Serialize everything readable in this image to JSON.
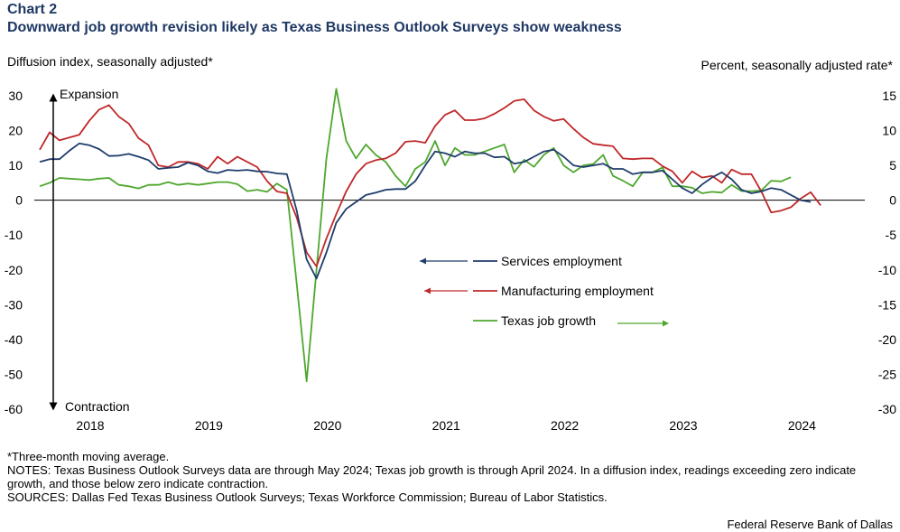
{
  "chart_label": "Chart 2",
  "chart_title": "Downward job growth revision likely as Texas Business Outlook Surveys show weakness",
  "left_axis_title": "Diffusion index, seasonally adjusted*",
  "right_axis_title": "Percent, seasonally adjusted rate*",
  "expansion_label": "Expansion",
  "contraction_label": "Contraction",
  "footer": {
    "note1": "*Three-month moving average.",
    "notes": "NOTES: Texas Business Outlook Surveys data are through May 2024; Texas job growth is through April 2024. In a diffusion index, readings exceeding zero indicate growth, and those below zero indicate contraction.",
    "sources": "SOURCES: Dallas Fed Texas Business Outlook Surveys; Texas Workforce Commission; Bureau of Labor Statistics."
  },
  "credit": "Federal Reserve Bank of Dallas",
  "colors": {
    "services": "#1f3d6b",
    "manufacturing": "#c0282a",
    "texas": "#4ea72e",
    "title": "#1f3864"
  },
  "chart_data": {
    "type": "line",
    "x_start": "2017-09",
    "x_labels": [
      "2018",
      "2019",
      "2020",
      "2021",
      "2022",
      "2023",
      "2024"
    ],
    "left_ylim": [
      -60,
      30
    ],
    "left_ticks": [
      "30",
      "20",
      "10",
      "0",
      "-10",
      "-20",
      "-30",
      "-40",
      "-50",
      "-60"
    ],
    "right_ylim": [
      -30,
      15
    ],
    "right_ticks": [
      "15",
      "10",
      "5",
      "0",
      "-5",
      "-10",
      "-15",
      "-20",
      "-25",
      "-30"
    ],
    "grid": false,
    "series": [
      {
        "name": "Services employment",
        "axis": "left",
        "values": [
          11.0,
          11.8,
          11.8,
          14.2,
          16.3,
          15.8,
          14.7,
          12.7,
          12.8,
          13.3,
          12.5,
          11.5,
          9.0,
          9.3,
          9.5,
          10.8,
          10.0,
          8.3,
          7.8,
          8.7,
          8.5,
          8.7,
          8.3,
          8.2,
          7.7,
          7.5,
          -3.0,
          -17.0,
          -22.5,
          -15.0,
          -6.5,
          -2.5,
          -0.5,
          1.5,
          2.2,
          3.0,
          3.2,
          3.2,
          5.5,
          10.0,
          14.0,
          13.5,
          12.5,
          14.0,
          13.5,
          13.5,
          12.3,
          12.5,
          10.5,
          11.0,
          12.5,
          14.0,
          14.5,
          12.5,
          10.0,
          9.5,
          10.0,
          10.5,
          9.0,
          9.0,
          7.5,
          8.0,
          8.0,
          8.5,
          6.0,
          3.5,
          2.0,
          4.5,
          6.5,
          8.0,
          6.0,
          3.0,
          2.0,
          2.5,
          3.5,
          3.0,
          1.5,
          0.0,
          -0.5
        ]
      },
      {
        "name": "Manufacturing employment",
        "axis": "left",
        "values": [
          14.5,
          19.5,
          17.2,
          18.0,
          18.8,
          22.8,
          26.0,
          27.3,
          24.0,
          22.0,
          17.8,
          15.8,
          10.0,
          9.5,
          11.0,
          11.0,
          10.5,
          9.0,
          12.5,
          10.5,
          12.5,
          11.0,
          9.5,
          5.5,
          2.5,
          2.0,
          -5.0,
          -15.0,
          -19.0,
          -11.0,
          -4.0,
          2.5,
          7.5,
          10.5,
          11.5,
          12.0,
          13.5,
          16.8,
          17.0,
          16.5,
          21.3,
          24.5,
          25.8,
          23.0,
          23.0,
          23.5,
          24.8,
          26.5,
          28.5,
          29.0,
          25.8,
          24.0,
          22.8,
          23.3,
          20.5,
          18.0,
          16.2,
          15.8,
          15.5,
          12.0,
          11.8,
          12.0,
          12.0,
          9.8,
          8.3,
          5.0,
          8.3,
          6.5,
          7.0,
          5.0,
          8.8,
          7.5,
          7.5,
          2.5,
          -3.5,
          -3.0,
          -2.0,
          0.5,
          2.3,
          -1.5
        ]
      },
      {
        "name": "Texas job growth",
        "axis": "right",
        "values": [
          2.0,
          2.5,
          3.2,
          3.1,
          3.0,
          2.9,
          3.1,
          3.2,
          2.2,
          2.0,
          1.7,
          2.2,
          2.2,
          2.6,
          2.2,
          2.4,
          2.2,
          2.4,
          2.6,
          2.6,
          2.3,
          1.3,
          1.5,
          1.2,
          2.4,
          1.5,
          -12.0,
          -26.0,
          -10.0,
          6.0,
          16.0,
          8.5,
          6.0,
          8.0,
          6.5,
          5.5,
          3.5,
          2.0,
          4.5,
          5.5,
          8.5,
          5.0,
          7.5,
          6.5,
          6.5,
          7.0,
          7.5,
          8.0,
          4.0,
          5.8,
          4.8,
          6.5,
          7.5,
          5.0,
          4.0,
          5.0,
          5.2,
          6.5,
          3.5,
          2.8,
          2.0,
          4.0,
          4.0,
          4.7,
          2.0,
          2.0,
          1.8,
          1.0,
          1.2,
          1.1,
          2.2,
          1.3,
          1.3,
          1.4,
          2.8,
          2.7,
          3.3
        ]
      }
    ],
    "legend": [
      {
        "name": "Services employment",
        "arrow": "left"
      },
      {
        "name": "Manufacturing employment",
        "arrow": "left"
      },
      {
        "name": "Texas job growth",
        "arrow": "right"
      }
    ]
  }
}
